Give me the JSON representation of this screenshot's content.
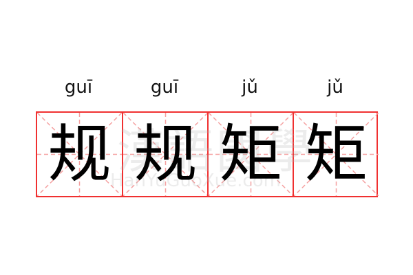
{
  "entries": [
    {
      "pinyin": "guī",
      "char": "规"
    },
    {
      "pinyin": "guī",
      "char": "规"
    },
    {
      "pinyin": "jǔ",
      "char": "矩"
    },
    {
      "pinyin": "jǔ",
      "char": "矩"
    }
  ],
  "watermark": {
    "cn": "漢語國學",
    "en": "HanYuGuoXue.com"
  },
  "colors": {
    "border": "#f03030",
    "guide": "#f5a0a0"
  }
}
